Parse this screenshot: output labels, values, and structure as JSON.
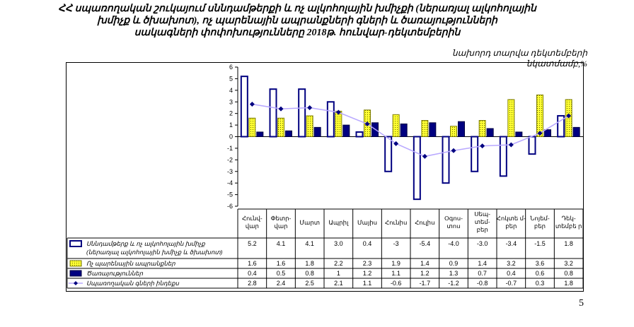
{
  "title": "ՀՀ սպառողական շուկայում սննդամթերքի և ոչ ալկոհոլային խմիչքի (ներառյալ ալկոհոլային\nխմիչք և ծխախոտ),  ոչ պարենային ապրանքների գների և ծառայությունների\nսակագների փոփոխությունները 2018թ. հունվար-դեկտեմբերին",
  "subtitle": "նախորդ տարվա դեկտեմբերի նկատմամբ,%",
  "page_number": "5",
  "chart_data": {
    "type": "bar",
    "categories": [
      "Հունվ-վար",
      "Փետր-վար",
      "Մարտ",
      "Ապրիլ",
      "Մայիս",
      "Հունիս",
      "Հուլիս",
      "Օգոս-տոս",
      "Սեպ-տեմ-բեր",
      "Հոկտե մ-բեր",
      "Նոյեմ-բեր",
      "Դեկ-տեմբե ր"
    ],
    "ylim": [
      -6,
      6
    ],
    "yticks": [
      6,
      5,
      4,
      3,
      2,
      1,
      0,
      -1,
      -2,
      -3,
      -4,
      -5,
      -6
    ],
    "grid": false,
    "legend": "table-below",
    "series": [
      {
        "name": "Սննդամթերք և ոչ ալկոհոլային խմիչք\n(ներառյալ ալկոհոլային խմիչք և ծխախոտ)",
        "kind": "bar",
        "color": "#ffffff",
        "stroke": "#000080",
        "values": [
          5.2,
          4.1,
          4.1,
          3.0,
          0.4,
          -3,
          -5.4,
          -4.0,
          -3.0,
          -3.4,
          -1.5,
          1.8
        ],
        "labels": [
          "5.2",
          "4.1",
          "4.1",
          "3.0",
          "0.4",
          "-3",
          "-5.4",
          "-4.0",
          "-3.0",
          "-3.4",
          "-1.5",
          "1.8"
        ]
      },
      {
        "name": "Ոչ պարենային ապրանքներ",
        "kind": "bar",
        "color": "#ffff33",
        "stroke": "#808000",
        "values": [
          1.6,
          1.6,
          1.8,
          2.2,
          2.3,
          1.9,
          1.4,
          0.9,
          1.4,
          3.2,
          3.6,
          3.2
        ],
        "labels": [
          "1.6",
          "1.6",
          "1.8",
          "2.2",
          "2.3",
          "1.9",
          "1.4",
          "0.9",
          "1.4",
          "3.2",
          "3.6",
          "3.2"
        ]
      },
      {
        "name": "Ծառայություններ",
        "kind": "bar",
        "color": "#000080",
        "stroke": "#000040",
        "values": [
          0.4,
          0.5,
          0.8,
          1,
          1.2,
          1.1,
          1.2,
          1.3,
          0.7,
          0.4,
          0.6,
          0.8
        ],
        "labels": [
          "0.4",
          "0.5",
          "0.8",
          "1",
          "1.2",
          "1.1",
          "1.2",
          "1.3",
          "0.7",
          "0.4",
          "0.6",
          "0.8"
        ]
      },
      {
        "name": "Սպառողական գների ինդեքս",
        "kind": "line",
        "color": "#b8a8ff",
        "marker": "#000080",
        "values": [
          2.8,
          2.4,
          2.5,
          2.1,
          1.1,
          -0.6,
          -1.7,
          -1.2,
          -0.8,
          -0.7,
          0.3,
          1.8
        ],
        "labels": [
          "2.8",
          "2.4",
          "2.5",
          "2.1",
          "1.1",
          "-0.6",
          "-1.7",
          "-1.2",
          "-0.8",
          "-0.7",
          "0.3",
          "1.8"
        ]
      }
    ]
  }
}
